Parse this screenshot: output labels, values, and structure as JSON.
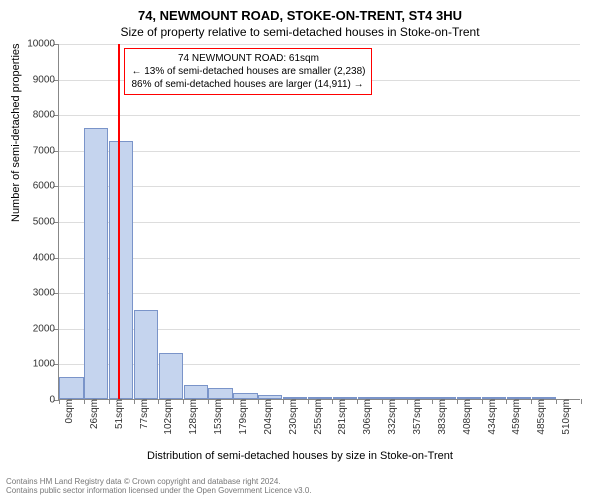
{
  "title": "74, NEWMOUNT ROAD, STOKE-ON-TRENT, ST4 3HU",
  "subtitle": "Size of property relative to semi-detached houses in Stoke-on-Trent",
  "chart": {
    "type": "bar",
    "ylim": [
      0,
      10000
    ],
    "ytick_step": 1000,
    "y_axis_title": "Number of semi-detached properties",
    "x_axis_title": "Distribution of semi-detached houses by size in Stoke-on-Trent",
    "x_labels": [
      "0sqm",
      "26sqm",
      "51sqm",
      "77sqm",
      "102sqm",
      "128sqm",
      "153sqm",
      "179sqm",
      "204sqm",
      "230sqm",
      "255sqm",
      "281sqm",
      "306sqm",
      "332sqm",
      "357sqm",
      "383sqm",
      "408sqm",
      "434sqm",
      "459sqm",
      "485sqm",
      "510sqm"
    ],
    "bars": [
      620,
      7600,
      7250,
      2500,
      1300,
      400,
      300,
      180,
      100,
      70,
      40,
      30,
      20,
      15,
      10,
      8,
      6,
      5,
      4,
      3
    ],
    "bar_fill": "#c5d4ee",
    "bar_border": "#7a94c9",
    "grid_color": "#dddddd",
    "axis_color": "#888888",
    "background": "#ffffff",
    "marker_value_x": 61,
    "marker_color": "#ff0000",
    "annotation": {
      "line1": "74 NEWMOUNT ROAD: 61sqm",
      "line2": "← 13% of semi-detached houses are smaller (2,238)",
      "line3": "86% of semi-detached houses are larger (14,911) →",
      "border_color": "#ff0000",
      "bg_color": "#ffffff"
    }
  },
  "footer": {
    "line1": "Contains HM Land Registry data © Crown copyright and database right 2024.",
    "line2": "Contains public sector information licensed under the Open Government Licence v3.0."
  }
}
